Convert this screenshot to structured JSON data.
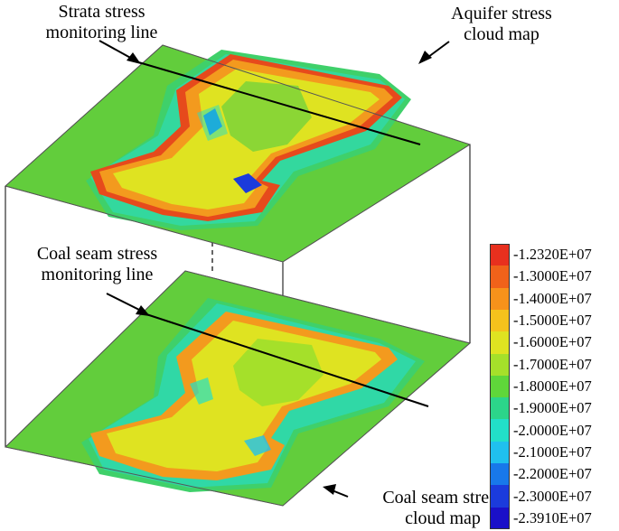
{
  "annotations": {
    "strata_line": [
      "Strata stress",
      "monitoring line"
    ],
    "aquifer_map": [
      "Aquifer stress",
      "cloud map"
    ],
    "coal_line": [
      "Coal seam stress",
      "monitoring line"
    ],
    "coal_map": [
      "Coal seam stress",
      "cloud map"
    ]
  },
  "legend": {
    "entries": [
      {
        "label": "-1.2320E+07",
        "color": "#e8301e"
      },
      {
        "label": "-1.3000E+07",
        "color": "#f0621a"
      },
      {
        "label": "-1.4000E+07",
        "color": "#f7921b"
      },
      {
        "label": "-1.5000E+07",
        "color": "#f5c21c"
      },
      {
        "label": "-1.6000E+07",
        "color": "#dfe321"
      },
      {
        "label": "-1.7000E+07",
        "color": "#a5e02a"
      },
      {
        "label": "-1.8000E+07",
        "color": "#5fd73a"
      },
      {
        "label": "-1.9000E+07",
        "color": "#2cd58a"
      },
      {
        "label": "-2.0000E+07",
        "color": "#22dfc8"
      },
      {
        "label": "-2.1000E+07",
        "color": "#20c0ee"
      },
      {
        "label": "-2.2000E+07",
        "color": "#1878ea"
      },
      {
        "label": "-2.3000E+07",
        "color": "#1b3bdc"
      },
      {
        "label": "-2.3910E+07",
        "color": "#1a10c8"
      }
    ]
  },
  "colors": {
    "background_field": "#62cd3c",
    "outer_halo": "#3fd06a",
    "edge_halo": "#2ed9b0",
    "panel_ring": "#f39a1e",
    "hot_ring": "#e64a1c",
    "mid": "#dfe321",
    "core": "#8bd635"
  }
}
